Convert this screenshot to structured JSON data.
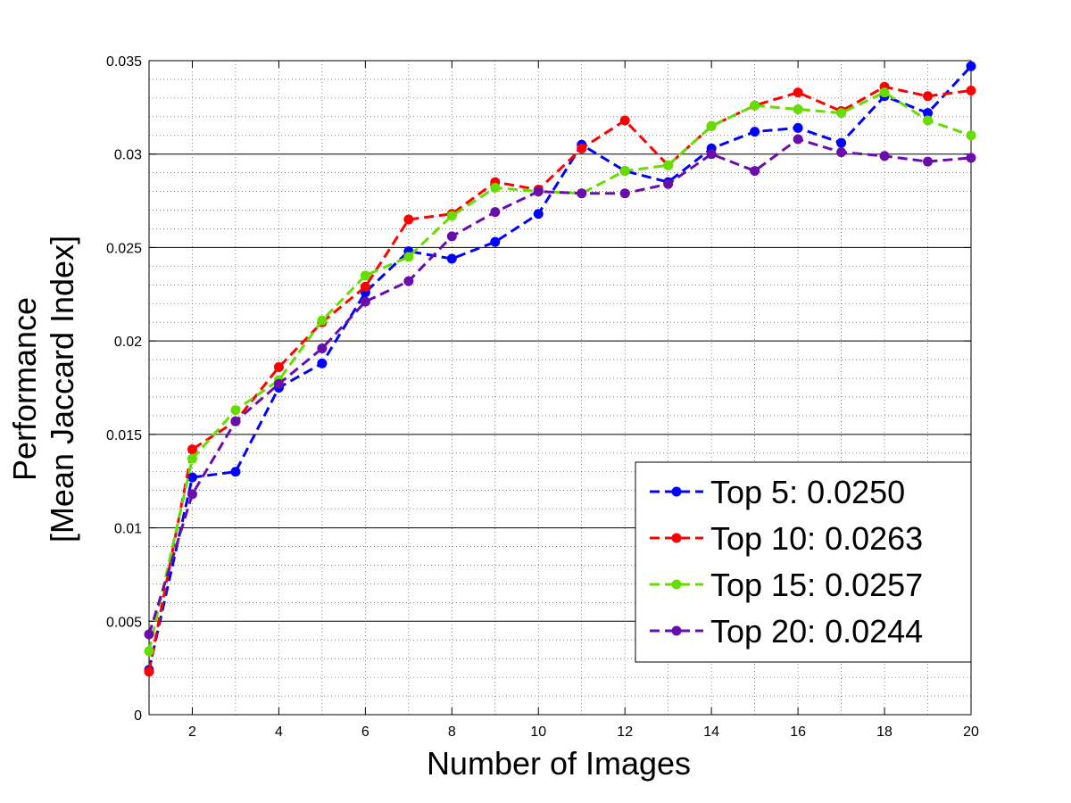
{
  "chart_data": {
    "type": "line",
    "title": "",
    "xlabel": "Number of Images",
    "ylabel_line1": "Performance",
    "ylabel_line2": "[Mean Jaccard Index]",
    "xlim": [
      1,
      20
    ],
    "ylim": [
      0,
      0.035
    ],
    "xticks": [
      2,
      4,
      6,
      8,
      10,
      12,
      14,
      16,
      18,
      20
    ],
    "yticks": [
      0,
      0.005,
      0.01,
      0.015,
      0.02,
      0.025,
      0.03,
      0.035
    ],
    "ytick_labels": [
      "0",
      "0.005",
      "0.01",
      "0.015",
      "0.02",
      "0.025",
      "0.03",
      "0.035"
    ],
    "grid": true,
    "legend_position": "lower-right",
    "x": [
      1,
      2,
      3,
      4,
      5,
      6,
      7,
      8,
      9,
      10,
      11,
      12,
      13,
      14,
      15,
      16,
      17,
      18,
      19,
      20
    ],
    "series": [
      {
        "name": "Top 5: 0.0250",
        "color": "#0000ff",
        "values": [
          0.0024,
          0.0127,
          0.013,
          0.0175,
          0.0188,
          0.0226,
          0.0248,
          0.0244,
          0.0253,
          0.0268,
          0.0305,
          0.0291,
          0.0285,
          0.0303,
          0.0312,
          0.0314,
          0.0306,
          0.0331,
          0.0322,
          0.0347
        ]
      },
      {
        "name": "Top 10: 0.0263",
        "color": "#ff0000",
        "values": [
          0.0023,
          0.0142,
          0.0157,
          0.0186,
          0.021,
          0.0229,
          0.0265,
          0.0268,
          0.0285,
          0.0281,
          0.0303,
          0.0318,
          0.0294,
          0.0315,
          0.0326,
          0.0333,
          0.0323,
          0.0336,
          0.0331,
          0.0334
        ]
      },
      {
        "name": "Top 15: 0.0257",
        "color": "#66dd00",
        "values": [
          0.0034,
          0.0137,
          0.0163,
          0.0179,
          0.0211,
          0.0235,
          0.0245,
          0.0267,
          0.0282,
          0.028,
          0.0279,
          0.0291,
          0.0294,
          0.0315,
          0.0326,
          0.0324,
          0.0322,
          0.0333,
          0.0318,
          0.031
        ]
      },
      {
        "name": "Top 20: 0.0244",
        "color": "#6a0dad",
        "values": [
          0.0043,
          0.0118,
          0.0157,
          0.0177,
          0.0196,
          0.0221,
          0.0232,
          0.0256,
          0.0269,
          0.028,
          0.0279,
          0.0279,
          0.0284,
          0.03,
          0.0291,
          0.0308,
          0.0301,
          0.0299,
          0.0296,
          0.0298
        ]
      }
    ]
  }
}
